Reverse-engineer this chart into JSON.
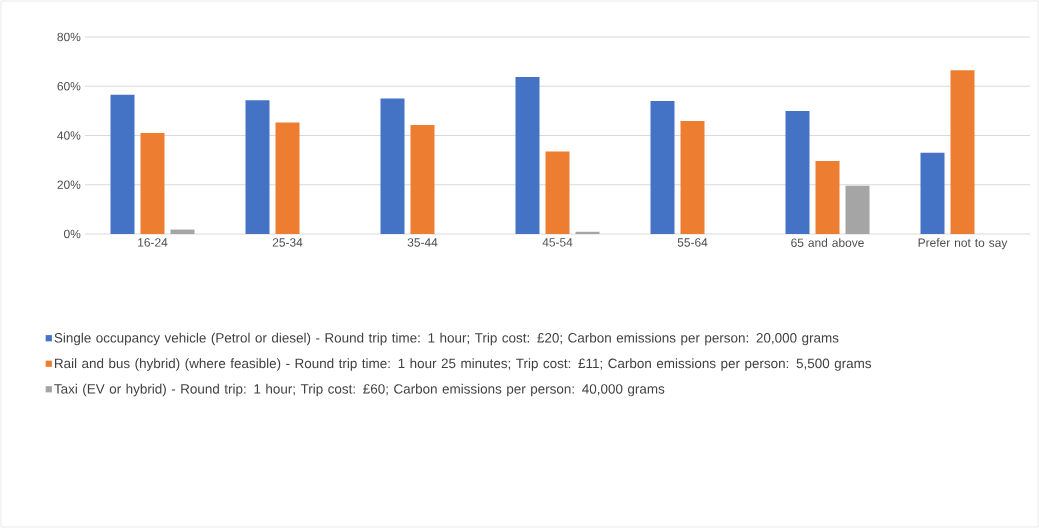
{
  "chart_data": {
    "type": "bar",
    "categories": [
      "16-24",
      "25-34",
      "35-44",
      "45-54",
      "55-64",
      "65 and above",
      "Prefer not to say"
    ],
    "series": [
      {
        "name": "Single occupancy vehicle (Petrol or diesel) - Round trip time: 1 hour; Trip cost: £20; Carbon emissions per person: 20,000 grams",
        "color": "#4472c4",
        "values": [
          56.5,
          54.3,
          55,
          63.8,
          54,
          50,
          33
        ]
      },
      {
        "name": "Rail and bus (hybrid) (where feasible) - Round trip time: 1 hour 25 minutes; Trip cost: £11; Carbon emissions per person: 5,500 grams",
        "color": "#ed7d31",
        "values": [
          41,
          45.3,
          44.3,
          33.5,
          45.9,
          29.6,
          66.5
        ]
      },
      {
        "name": "Taxi (EV or hybrid) - Round trip: 1 hour; Trip cost: £60; Carbon emissions per person: 40,000 grams",
        "color": "#a5a5a5",
        "values": [
          1.8,
          0,
          0,
          0.9,
          0,
          19.6,
          0
        ]
      }
    ],
    "ylim": [
      0,
      80
    ],
    "yticks": [
      {
        "value": 0,
        "label": "0%"
      },
      {
        "value": 20,
        "label": "20%"
      },
      {
        "value": 40,
        "label": "40%"
      },
      {
        "value": 60,
        "label": "60%"
      },
      {
        "value": 80,
        "label": "80%"
      }
    ],
    "grid": "y",
    "legend": "bottom"
  }
}
